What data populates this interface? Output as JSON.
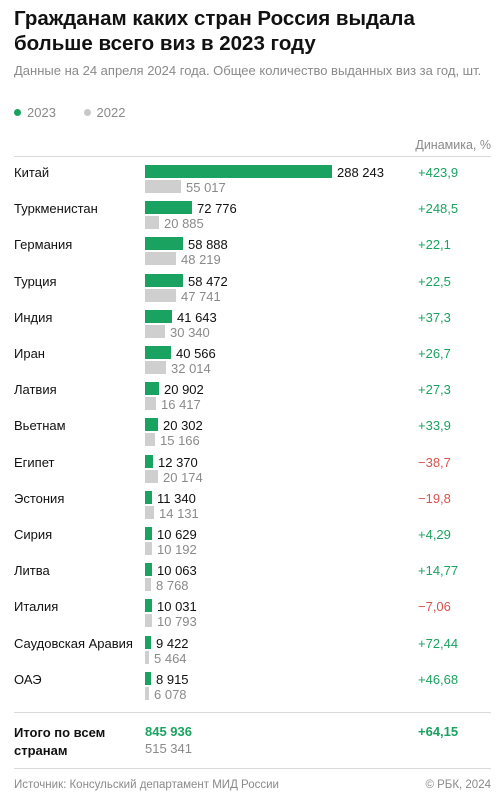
{
  "header": {
    "title": "Гражданам каких стран Россия выдала больше всего виз в 2023 году",
    "subtitle": "Данные на 24 апреля 2024 года. Общее количество выданных виз за год, шт."
  },
  "legend": [
    {
      "label": "2023",
      "color": "#1aa260"
    },
    {
      "label": "2022",
      "color": "#c8c8c8"
    }
  ],
  "column_header": "Динамика, %",
  "colors": {
    "current": "#1aa260",
    "previous": "#cfcfcf",
    "positive": "#1aa260",
    "negative": "#d9534f"
  },
  "chart_data": {
    "type": "bar",
    "orientation": "horizontal",
    "title": "Гражданам каких стран Россия выдала больше всего виз в 2023 году",
    "categories": [
      "Китай",
      "Туркменистан",
      "Германия",
      "Турция",
      "Индия",
      "Иран",
      "Латвия",
      "Вьетнам",
      "Египет",
      "Эстония",
      "Сирия",
      "Литва",
      "Италия",
      "Саудовская Аравия",
      "ОАЭ"
    ],
    "series": [
      {
        "name": "2023",
        "values": [
          288243,
          72776,
          58888,
          58472,
          41643,
          40566,
          20902,
          20302,
          12370,
          11340,
          10629,
          10063,
          10031,
          9422,
          8915
        ],
        "labels": [
          "288 243",
          "72 776",
          "58 888",
          "58 472",
          "41 643",
          "40 566",
          "20 902",
          "20 302",
          "12 370",
          "11 340",
          "10 629",
          "10 063",
          "10 031",
          "9 422",
          "8 915"
        ]
      },
      {
        "name": "2022",
        "values": [
          55017,
          20885,
          48219,
          47741,
          30340,
          32014,
          16417,
          15166,
          20174,
          14131,
          10192,
          8768,
          10793,
          5464,
          6078
        ],
        "labels": [
          "55 017",
          "20 885",
          "48 219",
          "47 741",
          "30 340",
          "32 014",
          "16 417",
          "15 166",
          "20 174",
          "14 131",
          "10 192",
          "8 768",
          "10 793",
          "5 464",
          "6 078"
        ]
      }
    ],
    "dynamics": [
      "+423,9",
      "+248,5",
      "+22,1",
      "+22,5",
      "+37,3",
      "+26,7",
      "+27,3",
      "+33,9",
      "−38,7",
      "−19,8",
      "+4,29",
      "+14,77",
      "−7,06",
      "+72,44",
      "+46,68"
    ],
    "xlim": [
      0,
      288243
    ],
    "grid": false,
    "legend_position": "top-left"
  },
  "total": {
    "label": "Итого по всем странам",
    "current": "845 936",
    "previous": "515 341",
    "dynamic": "+64,15"
  },
  "footer": {
    "source": "Источник: Консульский департамент МИД России",
    "brand": "© РБК, 2024"
  }
}
